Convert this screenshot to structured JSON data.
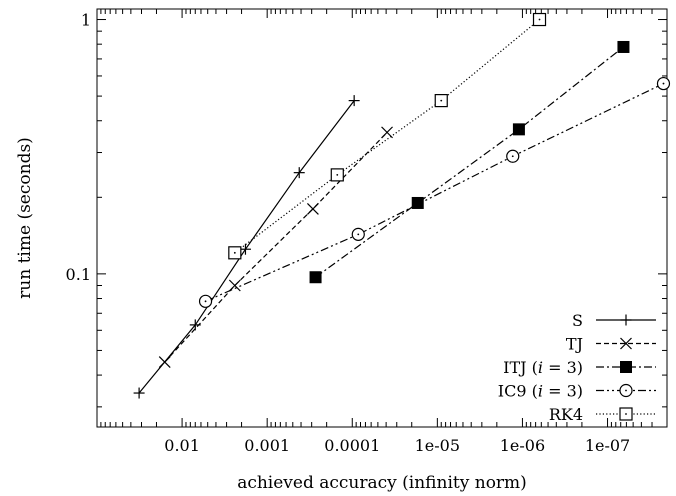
{
  "chart_data": {
    "type": "line",
    "title": "",
    "xlabel": "achieved accuracy (infinity norm)",
    "ylabel": "run time (seconds)",
    "x_scale": "log",
    "x_reversed": true,
    "y_scale": "log",
    "xlim": [
      0.1,
      2e-08
    ],
    "ylim": [
      0.025,
      1.1
    ],
    "x_ticks": [
      {
        "value": 0.01,
        "label": "0.01"
      },
      {
        "value": 0.001,
        "label": "0.001"
      },
      {
        "value": 0.0001,
        "label": "0.0001"
      },
      {
        "value": 1e-05,
        "label": "1e-05"
      },
      {
        "value": 1e-06,
        "label": "1e-06"
      },
      {
        "value": 1e-07,
        "label": "1e-07"
      }
    ],
    "y_ticks": [
      {
        "value": 0.1,
        "label": "0.1"
      },
      {
        "value": 1,
        "label": "1"
      }
    ],
    "grid": false,
    "legend_position": "bottom-right",
    "series": [
      {
        "name": "S",
        "line": "solid",
        "marker": "plus",
        "points": [
          [
            0.032,
            0.034
          ],
          [
            0.007,
            0.063
          ],
          [
            0.0018,
            0.125
          ],
          [
            0.00042,
            0.25
          ],
          [
            9.5e-05,
            0.48
          ]
        ]
      },
      {
        "name": "TJ",
        "line": "dashed",
        "marker": "cross",
        "points": [
          [
            0.016,
            0.045
          ],
          [
            0.0024,
            0.09
          ],
          [
            0.00029,
            0.18
          ],
          [
            3.9e-05,
            0.36
          ]
        ]
      },
      {
        "name": "ITJ (i = 3)",
        "line": "dashdot",
        "marker": "filled-square",
        "points": [
          [
            0.00027,
            0.097
          ],
          [
            1.7e-05,
            0.19
          ],
          [
            1.1e-06,
            0.37
          ],
          [
            6.5e-08,
            0.78
          ]
        ]
      },
      {
        "name": "IC9 (i = 3)",
        "line": "dashdotdot",
        "marker": "circle",
        "points": [
          [
            0.0053,
            0.078
          ],
          [
            8.5e-05,
            0.143
          ],
          [
            1.3e-06,
            0.29
          ],
          [
            2.2e-08,
            0.56
          ]
        ]
      },
      {
        "name": "RK4",
        "line": "dotted",
        "marker": "open-square",
        "points": [
          [
            0.0024,
            0.121
          ],
          [
            0.00015,
            0.245
          ],
          [
            9e-06,
            0.48
          ],
          [
            6.3e-07,
            1.0
          ]
        ]
      }
    ],
    "legend": [
      {
        "label": "S"
      },
      {
        "label": "TJ"
      },
      {
        "label": "ITJ (i = 3)"
      },
      {
        "label": "IC9 (i = 3)"
      },
      {
        "label": "RK4"
      }
    ]
  }
}
